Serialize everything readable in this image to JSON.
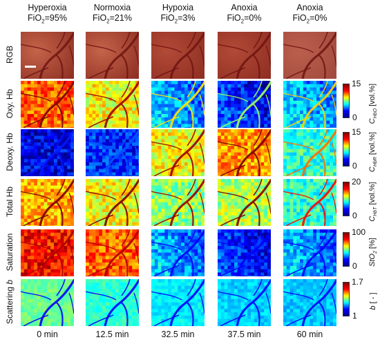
{
  "columns": [
    {
      "condition": "Hyperoxia",
      "fio2_text": "FiO",
      "fio2_sub": "2",
      "fio2_value": "=95%",
      "time": "0 min"
    },
    {
      "condition": "Normoxia",
      "fio2_text": "FiO",
      "fio2_sub": "2",
      "fio2_value": "=21%",
      "time": "12.5 min"
    },
    {
      "condition": "Hypoxia",
      "fio2_text": "FiO",
      "fio2_sub": "2",
      "fio2_value": "=3%",
      "time": "32.5 min"
    },
    {
      "condition": "Anoxia",
      "fio2_text": "FiO",
      "fio2_sub": "2",
      "fio2_value": "=0%",
      "time": "37.5 min"
    },
    {
      "condition": "Anoxia",
      "fio2_text": "FiO",
      "fio2_sub": "2",
      "fio2_value": "=0%",
      "time": "60 min"
    }
  ],
  "rows": [
    {
      "label": "RGB",
      "label_italic_part": "",
      "colorbar": null
    },
    {
      "label": "Oxy. Hb",
      "label_italic_part": "",
      "colorbar": {
        "max": "15",
        "min": "0",
        "unit_var": "C",
        "unit_sub": "HbO",
        "unit_rest": " [vol.%]"
      }
    },
    {
      "label": "Deoxy. Hb",
      "label_italic_part": "",
      "colorbar": {
        "max": "15",
        "min": "0",
        "unit_var": "C",
        "unit_sub": "HbR",
        "unit_rest": " [vol.%]"
      }
    },
    {
      "label": "Total Hb",
      "label_italic_part": "",
      "colorbar": {
        "max": "20",
        "min": "0",
        "unit_var": "C",
        "unit_sub": "HbT",
        "unit_rest": " [vol.%]"
      }
    },
    {
      "label": "Saturation",
      "label_italic_part": "",
      "colorbar": {
        "max": "100",
        "min": "0",
        "unit_var": "StO",
        "unit_sub": "2",
        "unit_rest": " [%]"
      }
    },
    {
      "label": "Scattering ",
      "label_italic_part": "b",
      "colorbar": {
        "max": "1.7",
        "min": "1",
        "unit_var": "b",
        "unit_sub": "",
        "unit_rest": " [ - ]"
      }
    }
  ],
  "colors": {
    "rgb_tissue": "#a8442e",
    "jet_dark_blue": "#00008f",
    "jet_blue": "#0000ff",
    "jet_cyan": "#00ffff",
    "jet_yellow": "#ffff00",
    "jet_red": "#ff0000",
    "jet_dark_red": "#800000"
  },
  "map_levels": {
    "note_levels_are_mean_colormap_fraction": true,
    "oxy": [
      0.78,
      0.62,
      0.3,
      0.18,
      0.32
    ],
    "deoxy": [
      0.1,
      0.16,
      0.62,
      0.72,
      0.42
    ],
    "total": [
      0.7,
      0.62,
      0.52,
      0.55,
      0.42
    ],
    "saturation": [
      0.86,
      0.78,
      0.3,
      0.18,
      0.3
    ],
    "scattering": [
      0.48,
      0.42,
      0.36,
      0.33,
      0.32
    ]
  }
}
